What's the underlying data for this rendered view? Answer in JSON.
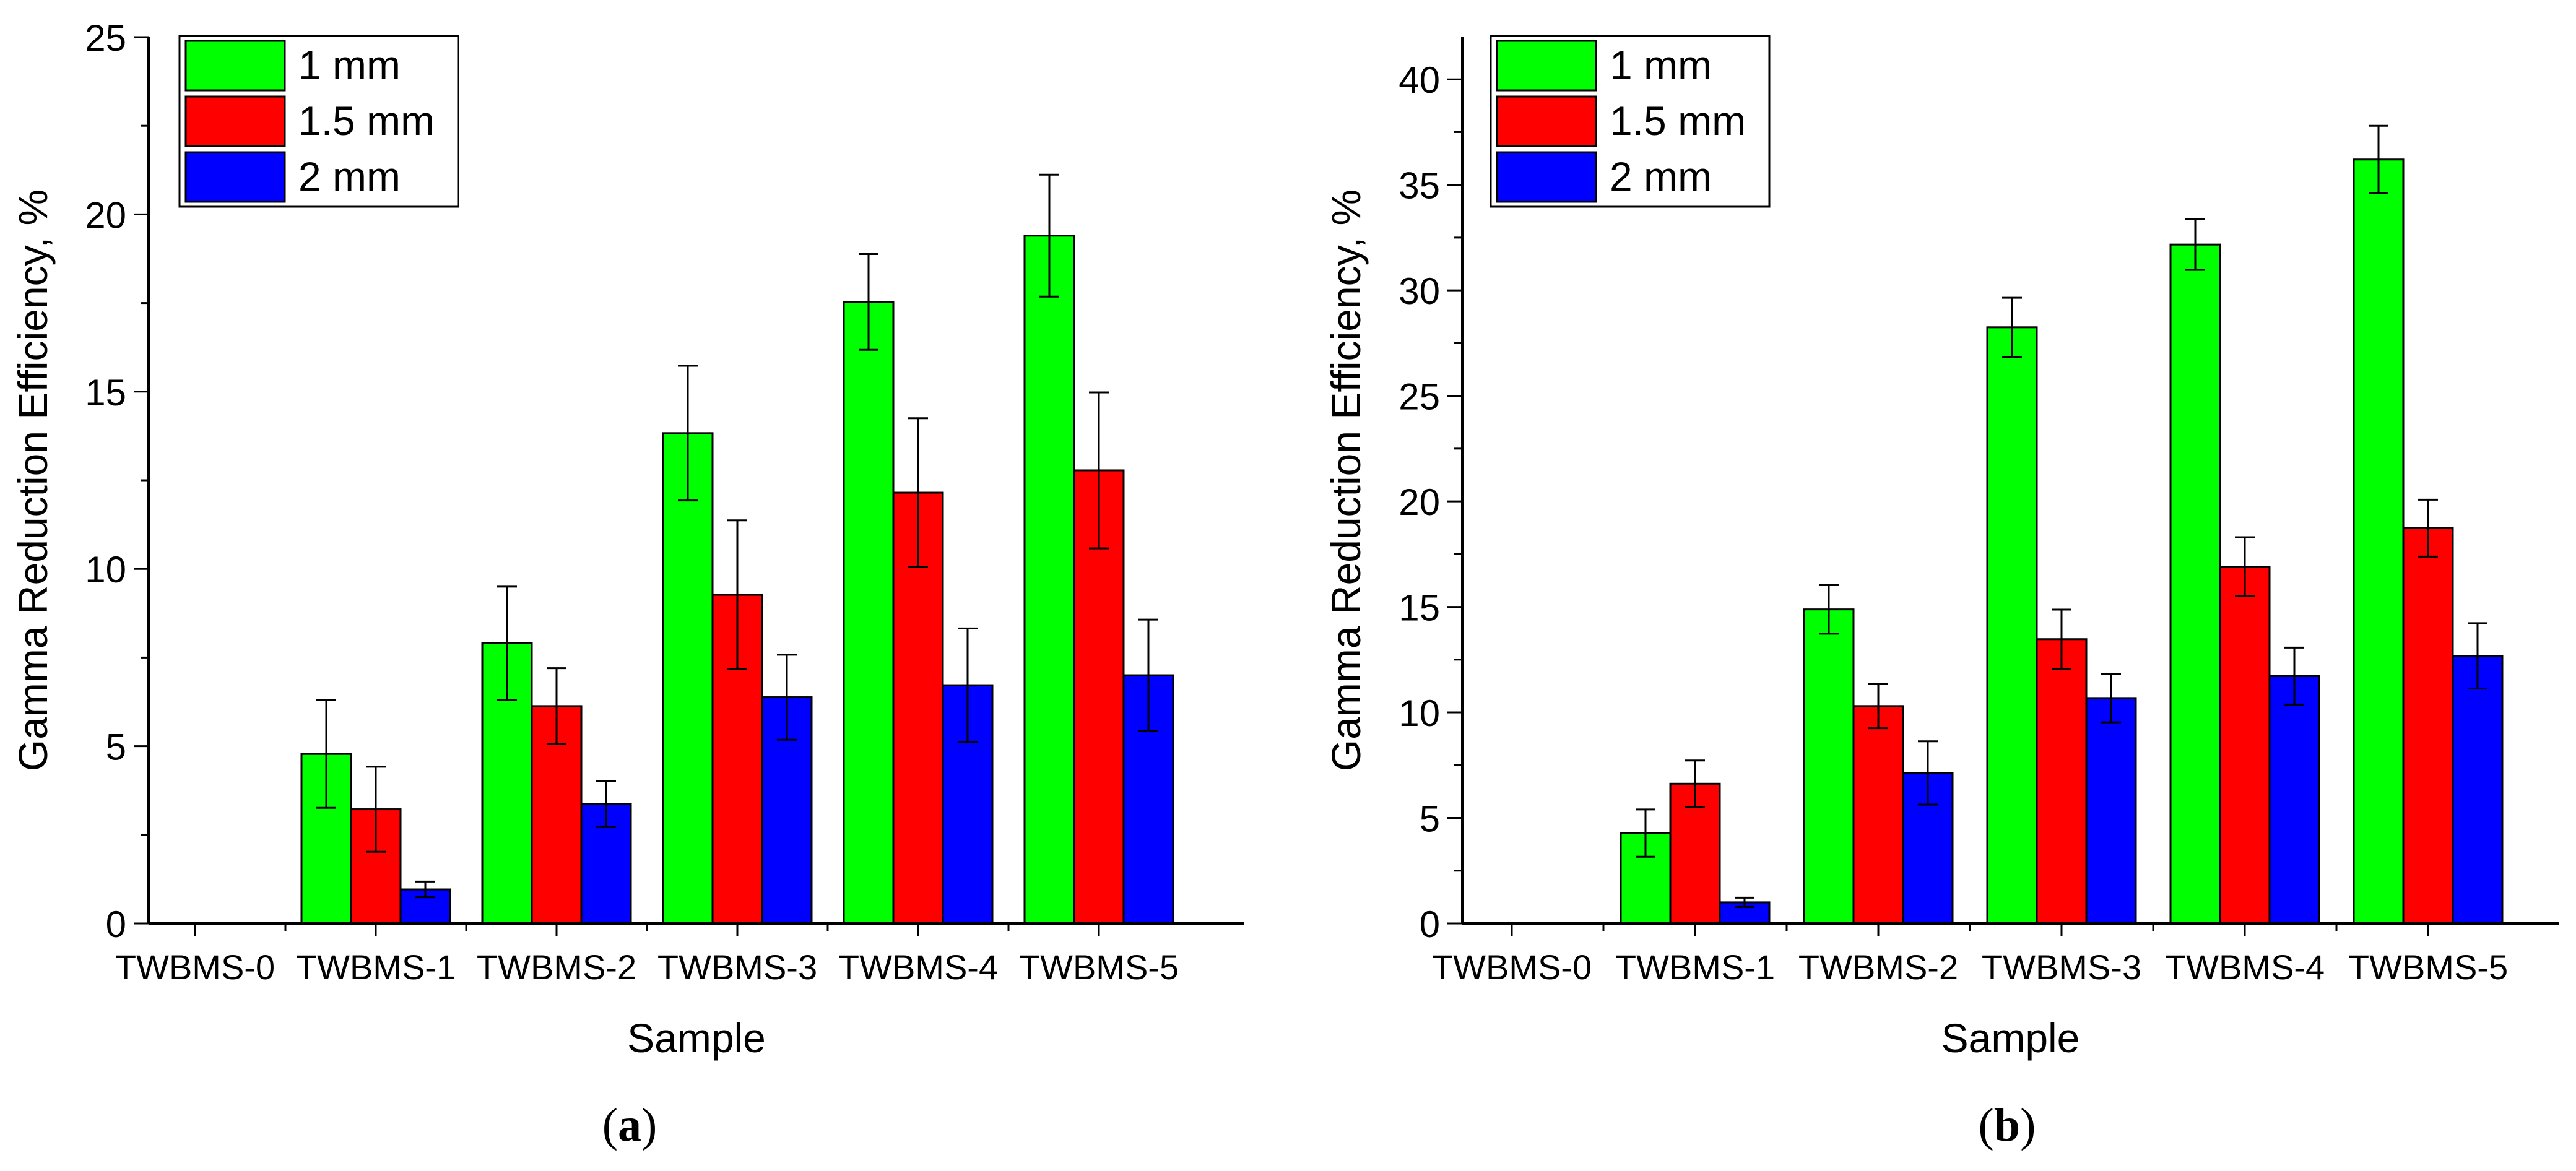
{
  "colors": {
    "1 mm": "#00ff00",
    "1.5 mm": "#ff0000",
    "2 mm": "#0000ff",
    "axis": "#000000"
  },
  "chart_data": [
    {
      "id": "a",
      "type": "bar",
      "caption": "a",
      "xlabel": "Sample",
      "ylabel": "Gamma Reduction Efficiency, %",
      "categories": [
        "TWBMS-0",
        "TWBMS-1",
        "TWBMS-2",
        "TWBMS-3",
        "TWBMS-4",
        "TWBMS-5"
      ],
      "ylim": [
        0,
        25
      ],
      "yticks": [
        0,
        5,
        10,
        15,
        20,
        25
      ],
      "legend_position": "top-left",
      "series": [
        {
          "name": "1 mm",
          "values": [
            0,
            4.78,
            7.9,
            13.83,
            17.53,
            19.4
          ],
          "errors": [
            0,
            1.52,
            1.6,
            1.9,
            1.35,
            1.72
          ]
        },
        {
          "name": "1.5 mm",
          "values": [
            0,
            3.22,
            6.13,
            9.27,
            12.15,
            12.78
          ],
          "errors": [
            0,
            1.2,
            1.07,
            2.1,
            2.1,
            2.2
          ]
        },
        {
          "name": "2 mm",
          "values": [
            0,
            0.96,
            3.37,
            6.38,
            6.72,
            7.0
          ],
          "errors": [
            0,
            0.22,
            0.65,
            1.2,
            1.6,
            1.57
          ]
        }
      ]
    },
    {
      "id": "b",
      "type": "bar",
      "caption": "b",
      "xlabel": "Sample",
      "ylabel": "Gamma Reduction Efficiency, %",
      "categories": [
        "TWBMS-0",
        "TWBMS-1",
        "TWBMS-2",
        "TWBMS-3",
        "TWBMS-4",
        "TWBMS-5"
      ],
      "ylim": [
        0,
        42
      ],
      "yticks": [
        0,
        5,
        10,
        15,
        20,
        25,
        30,
        35,
        40
      ],
      "legend_position": "top-left",
      "series": [
        {
          "name": "1 mm",
          "values": [
            0,
            4.28,
            14.88,
            28.25,
            32.17,
            36.2
          ],
          "errors": [
            0,
            1.12,
            1.15,
            1.4,
            1.2,
            1.6
          ]
        },
        {
          "name": "1.5 mm",
          "values": [
            0,
            6.62,
            10.3,
            13.47,
            16.9,
            18.73
          ],
          "errors": [
            0,
            1.1,
            1.05,
            1.4,
            1.4,
            1.35
          ]
        },
        {
          "name": "2 mm",
          "values": [
            0,
            1.0,
            7.13,
            10.68,
            11.72,
            12.68
          ],
          "errors": [
            0,
            0.22,
            1.5,
            1.15,
            1.35,
            1.55
          ]
        }
      ]
    }
  ]
}
